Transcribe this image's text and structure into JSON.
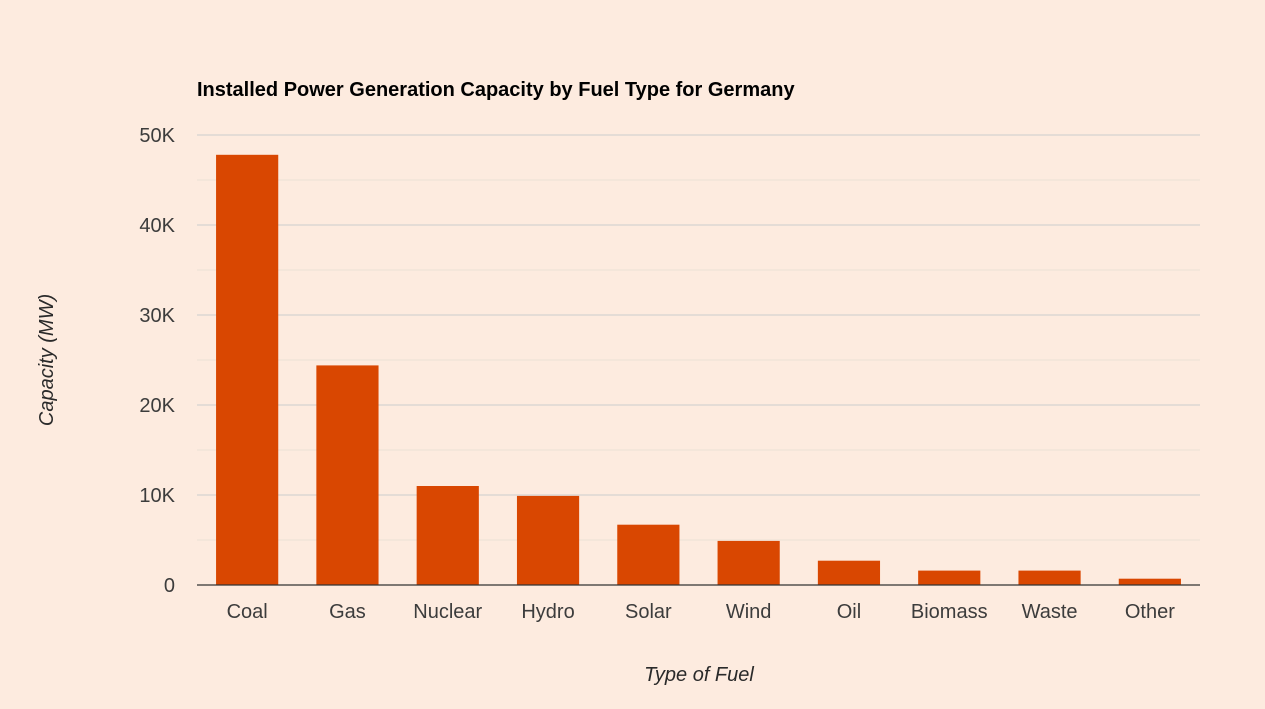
{
  "chart_data": {
    "type": "bar",
    "title": "Installed Power Generation Capacity by Fuel Type for Germany",
    "xlabel": "Type of Fuel",
    "ylabel": "Capacity (MW)",
    "categories": [
      "Coal",
      "Gas",
      "Nuclear",
      "Hydro",
      "Solar",
      "Wind",
      "Oil",
      "Biomass",
      "Waste",
      "Other"
    ],
    "values": [
      47800,
      24400,
      11000,
      9900,
      6700,
      4900,
      2700,
      1600,
      1600,
      700
    ],
    "ylim": [
      0,
      50000
    ],
    "yticks": [
      0,
      10000,
      20000,
      30000,
      40000,
      50000
    ],
    "ytick_labels": [
      "0",
      "10K",
      "20K",
      "30K",
      "40K",
      "50K"
    ],
    "grid": true,
    "bar_color": "#d94701",
    "background_color": "#fdebdf",
    "gridline_color": "#cccccc",
    "minor_gridline_color": "#ebe0d6"
  }
}
